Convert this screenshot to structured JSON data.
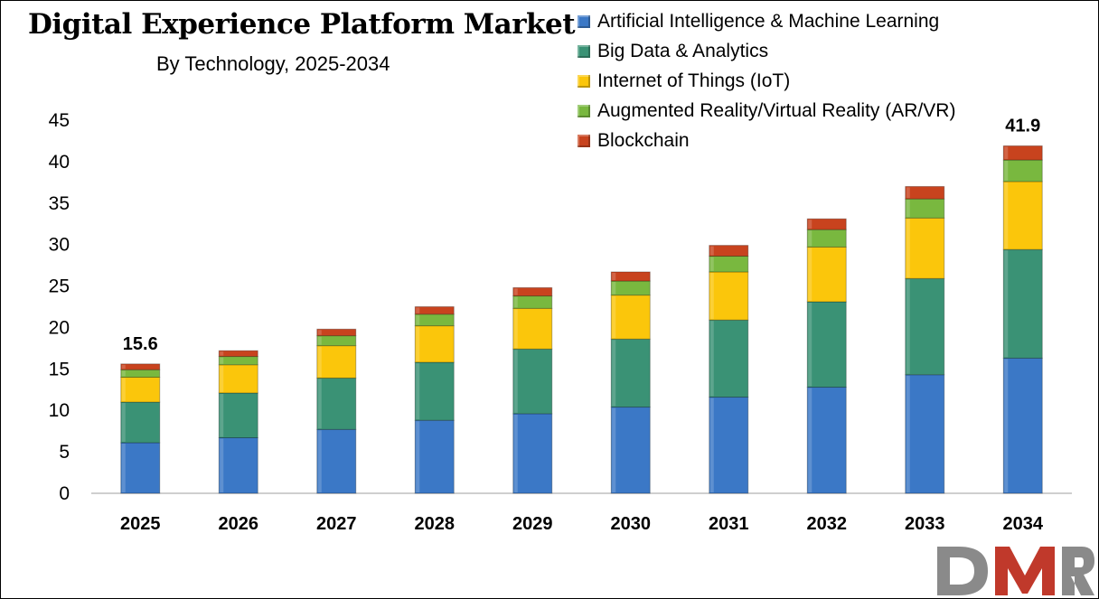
{
  "chart_data": {
    "type": "bar",
    "stacked": true,
    "title": "Digital Experience Platform Market",
    "subtitle": "By Technology, 2025-2034",
    "xlabel": "",
    "ylabel": "",
    "ylim": [
      0,
      45
    ],
    "yticks": [
      0,
      5,
      10,
      15,
      20,
      25,
      30,
      35,
      40,
      45
    ],
    "grid": false,
    "legend_position": "top-right",
    "categories": [
      "2025",
      "2026",
      "2027",
      "2028",
      "2029",
      "2030",
      "2031",
      "2032",
      "2033",
      "2034"
    ],
    "series": [
      {
        "name": "Artificial Intelligence & Machine Learning",
        "color": "#3b78c6",
        "values": [
          6.1,
          6.7,
          7.7,
          8.8,
          9.6,
          10.4,
          11.6,
          12.8,
          14.3,
          16.3
        ]
      },
      {
        "name": "Big Data & Analytics",
        "color": "#3a9275",
        "values": [
          4.9,
          5.4,
          6.2,
          7.0,
          7.8,
          8.2,
          9.3,
          10.3,
          11.6,
          13.1
        ]
      },
      {
        "name": "Internet of Things (IoT)",
        "color": "#fbc60b",
        "values": [
          3.0,
          3.4,
          3.9,
          4.4,
          4.9,
          5.3,
          5.8,
          6.6,
          7.3,
          8.2
        ]
      },
      {
        "name": "Augmented Reality/Virtual Reality (AR/VR)",
        "color": "#79b83f",
        "values": [
          0.9,
          1.0,
          1.2,
          1.4,
          1.5,
          1.7,
          1.9,
          2.1,
          2.3,
          2.6
        ]
      },
      {
        "name": "Blockchain",
        "color": "#c8431e",
        "values": [
          0.7,
          0.7,
          0.8,
          0.9,
          1.0,
          1.1,
          1.3,
          1.3,
          1.5,
          1.7
        ]
      }
    ],
    "annotations": [
      {
        "category": "2025",
        "text": "15.6"
      },
      {
        "category": "2034",
        "text": "41.9"
      }
    ]
  },
  "logo": {
    "text": "DMR",
    "colors": [
      "#8a8a8a",
      "#c0392b"
    ]
  }
}
